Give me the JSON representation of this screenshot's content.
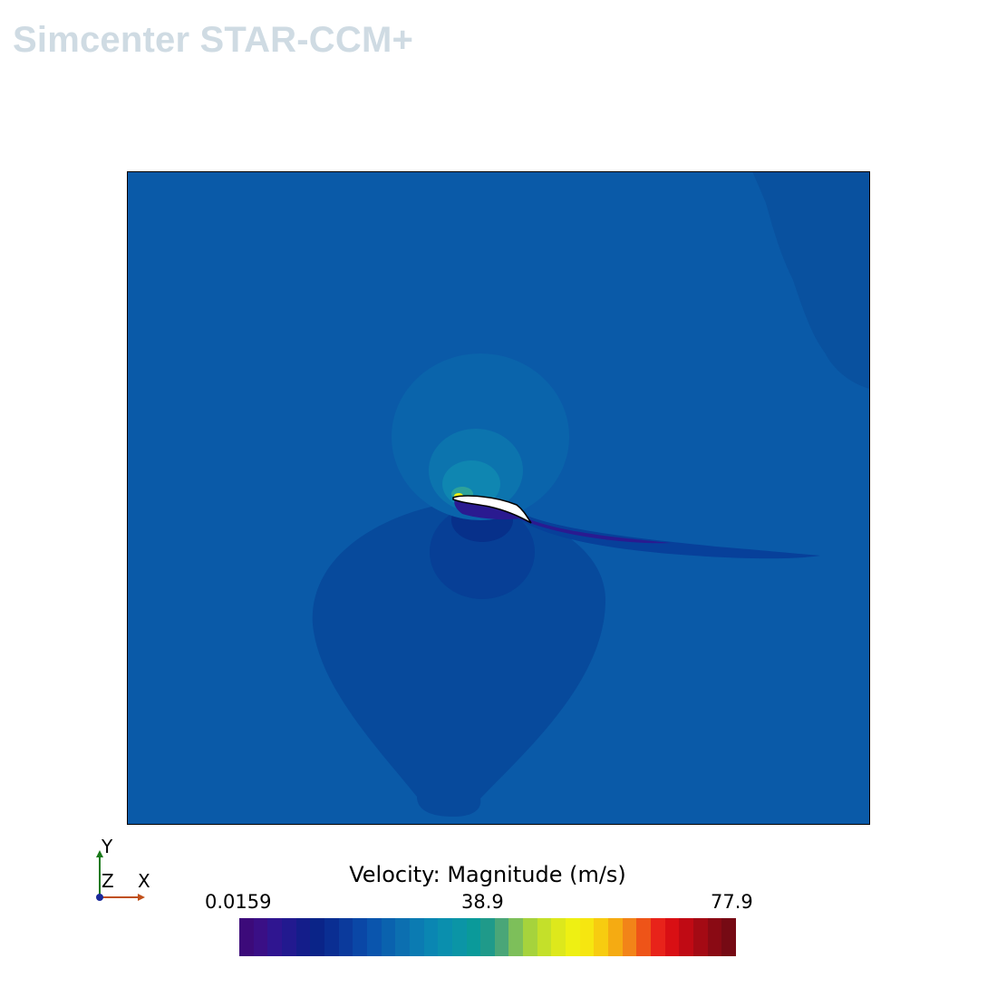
{
  "brand": "Simcenter STAR-CCM+",
  "legend": {
    "title": "Velocity: Magnitude (m/s)",
    "min": "0.0159",
    "mid": "38.9",
    "max": "77.9",
    "colors": [
      "#3c0a7a",
      "#3a0f86",
      "#2f1590",
      "#22198f",
      "#141d8a",
      "#0a2488",
      "#0a2e92",
      "#0b3a9c",
      "#0a47a6",
      "#0a55ad",
      "#0a62ae",
      "#0c6fb0",
      "#0b7bb2",
      "#0a86b2",
      "#0a8fae",
      "#0b95a6",
      "#0a9a9a",
      "#1f9a8a",
      "#4aa678",
      "#7dbf5a",
      "#a6d33c",
      "#c4e02a",
      "#dde81c",
      "#eef013",
      "#f6e610",
      "#f7cc10",
      "#f5ab12",
      "#f28418",
      "#ee5418",
      "#e8231a",
      "#d90f14",
      "#c00a14",
      "#a40a14",
      "#8a0a14",
      "#760a14"
    ]
  },
  "triad": {
    "y": "Y",
    "z": "Z",
    "x": "X"
  },
  "colors": {
    "freestream": "#0a5aa8",
    "far_region": "#09519f",
    "wake_region": "#07499a",
    "halo_outer": "#0a62a8",
    "halo_mid": "#0c71ad",
    "halo_inner": "#0e82b0",
    "stagnation": "#2ea29a",
    "suction_peak": "#eef013",
    "separation": "#2a1a90"
  },
  "icons": {
    "triad": "axis-triad-icon",
    "airfoil": "airfoil-icon"
  }
}
